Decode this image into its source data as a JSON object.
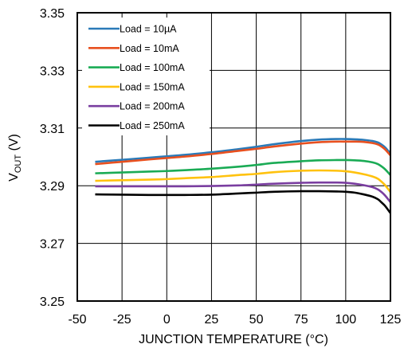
{
  "chart_data": {
    "type": "line",
    "xlabel": "JUNCTION TEMPERATURE (°C)",
    "ylabel_main": "V",
    "ylabel_sub": "OUT",
    "ylabel_unit": " (V)",
    "xlim": [
      -50,
      125
    ],
    "ylim": [
      3.25,
      3.35
    ],
    "x_ticks": [
      "-50",
      "-25",
      "0",
      "25",
      "50",
      "75",
      "100",
      "125"
    ],
    "y_ticks": [
      "3.25",
      "3.27",
      "3.29",
      "3.31",
      "3.33",
      "3.35"
    ],
    "grid": true,
    "legend_position": "top-left",
    "x": [
      -40,
      -25,
      -10,
      0,
      10,
      25,
      40,
      50,
      60,
      75,
      85,
      95,
      100,
      105,
      110,
      115,
      118,
      120,
      122,
      125
    ],
    "series": [
      {
        "name": "Load = 10µA",
        "color": "#2a7ab8",
        "values": [
          3.2983,
          3.299,
          3.2997,
          3.3002,
          3.3007,
          3.3016,
          3.3027,
          3.3035,
          3.3044,
          3.3055,
          3.306,
          3.3062,
          3.3062,
          3.3061,
          3.3059,
          3.3055,
          3.305,
          3.3043,
          3.3033,
          3.3012
        ]
      },
      {
        "name": "Load = 10mA",
        "color": "#e8501f",
        "values": [
          3.2975,
          3.2983,
          3.2991,
          3.2996,
          3.3001,
          3.301,
          3.3021,
          3.3028,
          3.3036,
          3.3046,
          3.3051,
          3.3053,
          3.3053,
          3.3053,
          3.3052,
          3.3048,
          3.3043,
          3.3036,
          3.3026,
          3.3005
        ]
      },
      {
        "name": "Load = 100mA",
        "color": "#1aab55",
        "values": [
          3.2943,
          3.2946,
          3.2949,
          3.2951,
          3.2954,
          3.2959,
          3.2966,
          3.2972,
          3.2979,
          3.2985,
          3.2988,
          3.2989,
          3.2989,
          3.2988,
          3.2986,
          3.2981,
          3.2975,
          3.2967,
          3.2957,
          3.2937
        ]
      },
      {
        "name": "Load = 150mA",
        "color": "#ffc20e",
        "values": [
          3.2917,
          3.2919,
          3.2921,
          3.2923,
          3.2926,
          3.293,
          3.2937,
          3.2941,
          3.2947,
          3.2952,
          3.2953,
          3.2952,
          3.295,
          3.2946,
          3.294,
          3.2932,
          3.2924,
          3.2914,
          3.2902,
          3.2878
        ]
      },
      {
        "name": "Load = 200mA",
        "color": "#7a3ea0",
        "values": [
          3.2898,
          3.2898,
          3.2898,
          3.2898,
          3.2898,
          3.2899,
          3.2901,
          3.2904,
          3.2907,
          3.291,
          3.2911,
          3.2911,
          3.291,
          3.2907,
          3.2902,
          3.2895,
          3.2887,
          3.2878,
          3.2866,
          3.2843
        ]
      },
      {
        "name": "Load = 250mA",
        "color": "#000000",
        "values": [
          3.287,
          3.2869,
          3.2868,
          3.2868,
          3.2868,
          3.2869,
          3.2873,
          3.2876,
          3.2879,
          3.2881,
          3.2881,
          3.288,
          3.2879,
          3.2876,
          3.287,
          3.2862,
          3.2853,
          3.2842,
          3.283,
          3.2805
        ]
      }
    ]
  }
}
